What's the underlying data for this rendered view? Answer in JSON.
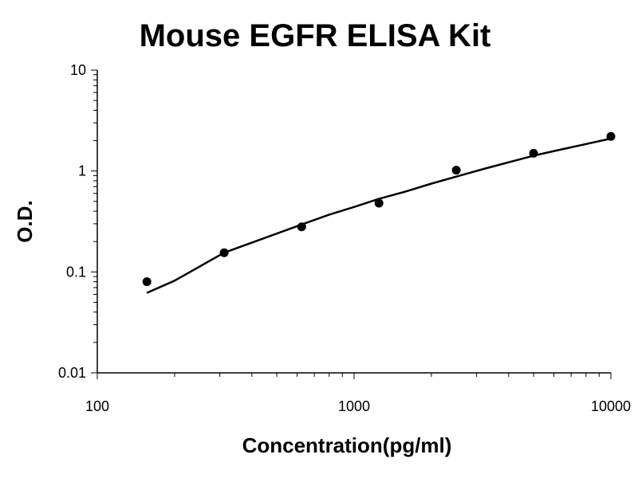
{
  "chart_data": {
    "type": "scatter",
    "title": "Mouse EGFR ELISA Kit",
    "xlabel": "Concentration(pg/ml)",
    "ylabel": "O.D.",
    "x_scale": "log",
    "y_scale": "log",
    "xlim": [
      100,
      10000
    ],
    "ylim": [
      0.01,
      10
    ],
    "x_ticks": [
      {
        "value": 100,
        "label": "100"
      },
      {
        "value": 1000,
        "label": "1000"
      },
      {
        "value": 10000,
        "label": "10000"
      }
    ],
    "y_ticks": [
      {
        "value": 0.01,
        "label": "0.01"
      },
      {
        "value": 0.1,
        "label": "0.1"
      },
      {
        "value": 1,
        "label": "1"
      },
      {
        "value": 10,
        "label": "10"
      }
    ],
    "grid": false,
    "series": [
      {
        "kind": "points",
        "color": "#000000",
        "x": [
          156,
          312,
          625,
          1250,
          2500,
          5000,
          10000
        ],
        "y": [
          0.08,
          0.155,
          0.28,
          0.48,
          1.02,
          1.5,
          2.2
        ]
      },
      {
        "kind": "fit-curve",
        "color": "#000000",
        "x": [
          156,
          200,
          312,
          500,
          625,
          800,
          1000,
          1250,
          1600,
          2000,
          2500,
          3200,
          4000,
          5000,
          6300,
          8000,
          10000
        ],
        "y": [
          0.062,
          0.082,
          0.155,
          0.24,
          0.295,
          0.37,
          0.44,
          0.53,
          0.63,
          0.75,
          0.88,
          1.05,
          1.22,
          1.42,
          1.62,
          1.85,
          2.1
        ]
      }
    ]
  }
}
